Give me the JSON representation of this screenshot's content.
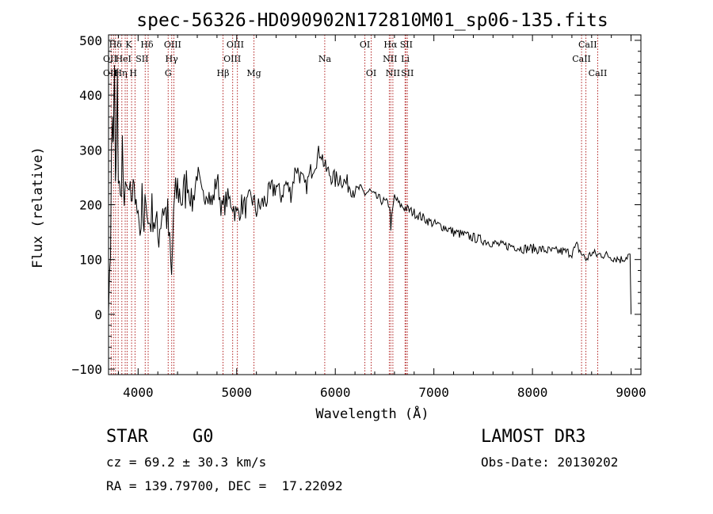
{
  "chart_data": {
    "type": "line",
    "title": "spec-56326-HD090902N172810M01_sp06-135.fits",
    "xlabel": "Wavelength (Å)",
    "ylabel": "Flux (relative)",
    "xlim": [
      3700,
      9100
    ],
    "ylim": [
      -110,
      510
    ],
    "xticks": [
      4000,
      5000,
      6000,
      7000,
      8000,
      9000
    ],
    "yticks": [
      -100,
      0,
      100,
      200,
      300,
      400,
      500
    ],
    "series": [
      {
        "name": "flux",
        "x": [
          3700,
          3720,
          3740,
          3750,
          3760,
          3770,
          3780,
          3790,
          3800,
          3820,
          3840,
          3860,
          3880,
          3900,
          3920,
          3940,
          3960,
          3980,
          4000,
          4020,
          4040,
          4060,
          4080,
          4100,
          4150,
          4200,
          4250,
          4300,
          4340,
          4360,
          4400,
          4450,
          4500,
          4550,
          4600,
          4650,
          4700,
          4750,
          4800,
          4850,
          4900,
          4950,
          5000,
          5050,
          5100,
          5150,
          5200,
          5250,
          5300,
          5350,
          5400,
          5450,
          5500,
          5550,
          5600,
          5650,
          5700,
          5750,
          5800,
          5850,
          5900,
          5950,
          6000,
          6050,
          6100,
          6150,
          6200,
          6250,
          6300,
          6350,
          6400,
          6450,
          6500,
          6550,
          6563,
          6600,
          6650,
          6700,
          6750,
          6800,
          6850,
          6900,
          6950,
          7000,
          7100,
          7200,
          7300,
          7400,
          7500,
          7600,
          7700,
          7800,
          7900,
          8000,
          8100,
          8200,
          8300,
          8400,
          8450,
          8500,
          8542,
          8600,
          8662,
          8700,
          8800,
          8900,
          8950,
          8990,
          9000
        ],
        "y": [
          0,
          150,
          380,
          300,
          470,
          220,
          300,
          420,
          250,
          200,
          310,
          160,
          270,
          190,
          230,
          170,
          250,
          180,
          220,
          150,
          200,
          130,
          240,
          160,
          190,
          140,
          200,
          175,
          60,
          190,
          230,
          210,
          240,
          200,
          260,
          210,
          230,
          200,
          250,
          190,
          210,
          205,
          180,
          200,
          195,
          215,
          190,
          200,
          210,
          225,
          235,
          215,
          240,
          220,
          270,
          250,
          230,
          260,
          280,
          300,
          265,
          255,
          245,
          250,
          240,
          235,
          225,
          230,
          220,
          225,
          215,
          210,
          205,
          200,
          160,
          215,
          200,
          195,
          190,
          185,
          180,
          175,
          170,
          165,
          160,
          150,
          145,
          140,
          135,
          130,
          125,
          125,
          120,
          120,
          118,
          115,
          115,
          112,
          125,
          110,
          100,
          112,
          108,
          110,
          105,
          100,
          105,
          110,
          0
        ]
      }
    ],
    "lines": [
      {
        "wl": 3727,
        "top": [
          "OII"
        ],
        "mid": [],
        "low": []
      },
      {
        "wl": 3750,
        "top": [],
        "mid": [],
        "low": []
      },
      {
        "wl": 3771,
        "top": [
          "OII"
        ],
        "mid": [],
        "low": []
      },
      {
        "wl": 3798,
        "top": [
          "Hη"
        ],
        "mid": [],
        "low": []
      },
      {
        "wl": 3835,
        "top": [],
        "mid": [],
        "low": []
      },
      {
        "wl": 3869,
        "top": [],
        "mid": [],
        "low": []
      },
      {
        "wl": 3889,
        "top": [],
        "mid": [],
        "low": []
      },
      {
        "wl": 3934,
        "top": [],
        "mid": [],
        "low": []
      },
      {
        "wl": 3969,
        "top": [],
        "mid": [],
        "low": []
      },
      {
        "wl": 4072,
        "top": [],
        "mid": [],
        "low": []
      },
      {
        "wl": 4102,
        "top": [],
        "mid": [],
        "low": []
      },
      {
        "wl": 4305,
        "top": [],
        "mid": [],
        "low": []
      },
      {
        "wl": 4341,
        "top": [],
        "mid": [],
        "low": []
      },
      {
        "wl": 4363,
        "top": [],
        "mid": [],
        "low": []
      },
      {
        "wl": 4861,
        "top": [],
        "mid": [],
        "low": []
      },
      {
        "wl": 4959,
        "top": [],
        "mid": [],
        "low": []
      },
      {
        "wl": 5007,
        "top": [],
        "mid": [],
        "low": []
      },
      {
        "wl": 5175,
        "top": [],
        "mid": [],
        "low": []
      },
      {
        "wl": 5893,
        "top": [],
        "mid": [],
        "low": []
      },
      {
        "wl": 6300,
        "top": [],
        "mid": [],
        "low": []
      },
      {
        "wl": 6364,
        "top": [],
        "mid": [],
        "low": []
      },
      {
        "wl": 6548,
        "top": [],
        "mid": [],
        "low": []
      },
      {
        "wl": 6563,
        "top": [],
        "mid": [],
        "low": []
      },
      {
        "wl": 6584,
        "top": [],
        "mid": [],
        "low": []
      },
      {
        "wl": 6708,
        "top": [],
        "mid": [],
        "low": []
      },
      {
        "wl": 6716,
        "top": [],
        "mid": [],
        "low": []
      },
      {
        "wl": 6731,
        "top": [],
        "mid": [],
        "low": []
      },
      {
        "wl": 8498,
        "top": [],
        "mid": [],
        "low": []
      },
      {
        "wl": 8542,
        "top": [],
        "mid": [],
        "low": []
      },
      {
        "wl": 8662,
        "top": [],
        "mid": [],
        "low": []
      }
    ],
    "line_labels": [
      {
        "text": "Hδ",
        "wl": 3770,
        "row": 0
      },
      {
        "text": "K",
        "wl": 3905,
        "row": 0
      },
      {
        "text": "Hδ",
        "wl": 4090,
        "row": 0
      },
      {
        "text": "OIII",
        "wl": 4350,
        "row": 0
      },
      {
        "text": "OIII",
        "wl": 4985,
        "row": 0
      },
      {
        "text": "OI",
        "wl": 6300,
        "row": 0
      },
      {
        "text": "Hα",
        "wl": 6560,
        "row": 0
      },
      {
        "text": "SII",
        "wl": 6720,
        "row": 0
      },
      {
        "text": "CaII",
        "wl": 8560,
        "row": 0
      },
      {
        "text": "OII",
        "wl": 3715,
        "row": 1
      },
      {
        "text": "HeI",
        "wl": 3850,
        "row": 1
      },
      {
        "text": "SII",
        "wl": 4040,
        "row": 1
      },
      {
        "text": "Hγ",
        "wl": 4340,
        "row": 1
      },
      {
        "text": "OIII",
        "wl": 4955,
        "row": 1
      },
      {
        "text": "Na",
        "wl": 5893,
        "row": 1
      },
      {
        "text": "NII",
        "wl": 6555,
        "row": 1
      },
      {
        "text": "Li",
        "wl": 6710,
        "row": 1
      },
      {
        "text": "CaII",
        "wl": 8498,
        "row": 1
      },
      {
        "text": "OII",
        "wl": 3715,
        "row": 2
      },
      {
        "text": "Hη",
        "wl": 3825,
        "row": 2
      },
      {
        "text": "H",
        "wl": 3950,
        "row": 2
      },
      {
        "text": "G",
        "wl": 4305,
        "row": 2
      },
      {
        "text": "Hβ",
        "wl": 4861,
        "row": 2
      },
      {
        "text": "Mg",
        "wl": 5175,
        "row": 2
      },
      {
        "text": "OI",
        "wl": 6364,
        "row": 2
      },
      {
        "text": "NII",
        "wl": 6584,
        "row": 2
      },
      {
        "text": "SII",
        "wl": 6731,
        "row": 2
      },
      {
        "text": "CaII",
        "wl": 8662,
        "row": 2
      }
    ]
  },
  "info": {
    "object_class": "STAR",
    "subclass": "G0",
    "survey": "LAMOST DR3",
    "cz": "cz = 69.2 ± 30.3 km/s",
    "obs_date": "Obs-Date: 20130202",
    "coords": "RA = 139.79700, DEC =  17.22092"
  }
}
